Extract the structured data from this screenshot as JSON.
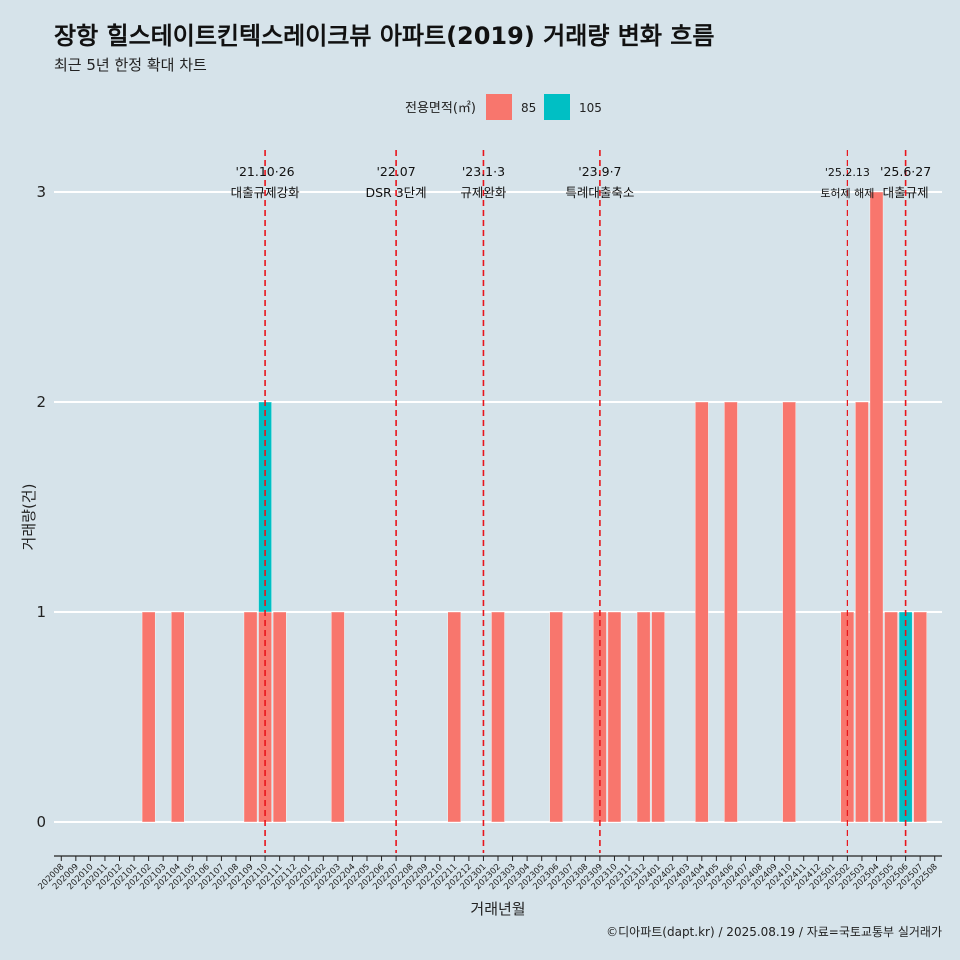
{
  "header": {
    "title": "장항 힐스테이트킨텍스레이크뷰 아파트(2019) 거래량 변화 흐름",
    "subtitle": "최근 5년 한정 확대 차트"
  },
  "legend": {
    "title": "전용면적(㎡)",
    "items": [
      {
        "label": "85",
        "color": "#f8766d"
      },
      {
        "label": "105",
        "color": "#00bfc4"
      }
    ]
  },
  "caption": "©디아파트(dapt.kr) / 2025.08.19 / 자료=국토교통부 실거래가",
  "chart_data": {
    "type": "bar",
    "stacked": true,
    "xlabel": "거래년월",
    "ylabel": "거래량(건)",
    "ylim": [
      -0.1,
      3.2
    ],
    "yticks": [
      0,
      1,
      2,
      3
    ],
    "categories": [
      "202008",
      "202009",
      "202010",
      "202011",
      "202012",
      "202101",
      "202102",
      "202103",
      "202104",
      "202105",
      "202106",
      "202107",
      "202108",
      "202109",
      "202110",
      "202111",
      "202112",
      "202201",
      "202202",
      "202203",
      "202204",
      "202205",
      "202206",
      "202207",
      "202208",
      "202209",
      "202210",
      "202211",
      "202212",
      "202301",
      "202302",
      "202303",
      "202304",
      "202305",
      "202306",
      "202307",
      "202308",
      "202309",
      "202310",
      "202311",
      "202312",
      "202401",
      "202402",
      "202403",
      "202404",
      "202405",
      "202406",
      "202407",
      "202408",
      "202409",
      "202410",
      "202411",
      "202412",
      "202501",
      "202502",
      "202503",
      "202504",
      "202505",
      "202506",
      "202507",
      "202508"
    ],
    "series": [
      {
        "name": "85",
        "color": "#f8766d",
        "values": [
          0,
          0,
          0,
          0,
          0,
          0,
          1,
          0,
          1,
          0,
          0,
          0,
          0,
          1,
          1,
          1,
          0,
          0,
          0,
          1,
          0,
          0,
          0,
          0,
          0,
          0,
          0,
          1,
          0,
          0,
          1,
          0,
          0,
          0,
          1,
          0,
          0,
          1,
          1,
          0,
          1,
          1,
          0,
          0,
          2,
          0,
          2,
          0,
          0,
          0,
          2,
          0,
          0,
          0,
          1,
          2,
          3,
          1,
          0,
          1,
          0
        ]
      },
      {
        "name": "105",
        "color": "#00bfc4",
        "values": [
          0,
          0,
          0,
          0,
          0,
          0,
          0,
          0,
          0,
          0,
          0,
          0,
          0,
          0,
          1,
          0,
          0,
          0,
          0,
          0,
          0,
          0,
          0,
          0,
          0,
          0,
          0,
          0,
          0,
          0,
          0,
          0,
          0,
          0,
          0,
          0,
          0,
          0,
          0,
          0,
          0,
          0,
          0,
          0,
          0,
          0,
          0,
          0,
          0,
          0,
          0,
          0,
          0,
          0,
          0,
          0,
          0,
          0,
          1,
          0,
          0
        ]
      }
    ],
    "annotations": [
      {
        "x": "202110",
        "offset": 0.0,
        "line1": "'21.10·26",
        "line2": "대출규제강화",
        "small": false
      },
      {
        "x": "202207",
        "offset": 0.0,
        "line1": "'22.07",
        "line2": "DSR 3단계",
        "small": false
      },
      {
        "x": "202301",
        "offset": 0.0,
        "line1": "'23.1·3",
        "line2": "규제완화",
        "small": false
      },
      {
        "x": "202309",
        "offset": 0.0,
        "line1": "'23.9·7",
        "line2": "특례대출축소",
        "small": false
      },
      {
        "x": "202502",
        "offset": 0.0,
        "line1": "'25.2.13",
        "line2": "토허제 해제",
        "small": true
      },
      {
        "x": "202506",
        "offset": 0.0,
        "line1": "'25.6·27",
        "line2": "대출규제",
        "small": false
      }
    ]
  }
}
